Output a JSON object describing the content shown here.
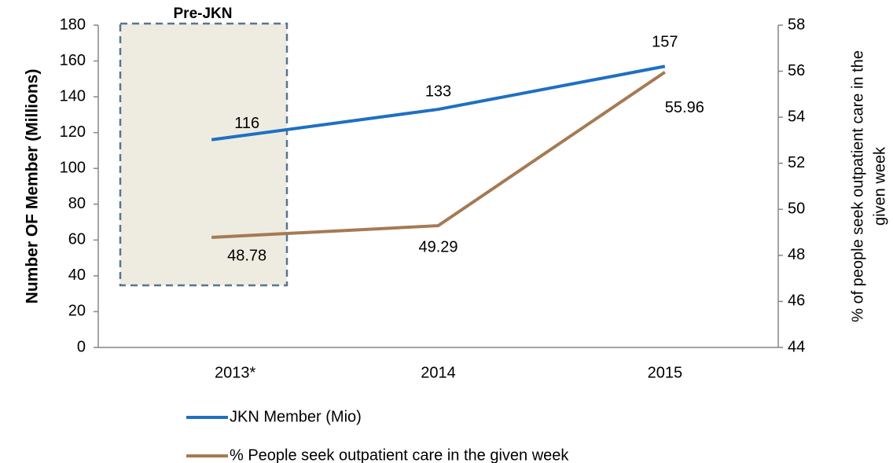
{
  "chart_data": {
    "type": "line",
    "categories": [
      "2013*",
      "2014",
      "2015"
    ],
    "series": [
      {
        "name": "JKN Member (Mio)",
        "color": "#1f70c1",
        "values": [
          116,
          133,
          157
        ]
      },
      {
        "name": "% People seek outpatient care in the given week",
        "color": "#a57a53",
        "axis": "y2",
        "values": [
          48.78,
          49.29,
          55.96
        ]
      }
    ],
    "ylabel": "Number  OF Member (Millions)",
    "y2label": [
      "% of people seek outpatient care in the",
      "given week"
    ],
    "ylim": [
      0,
      180
    ],
    "yticks": [
      0,
      20,
      40,
      60,
      80,
      100,
      120,
      140,
      160,
      180
    ],
    "y2lim": [
      44,
      58
    ],
    "y2ticks": [
      44,
      46,
      48,
      50,
      52,
      54,
      56,
      58
    ],
    "annotation": "Pre-JKN",
    "legend": "bottom"
  }
}
